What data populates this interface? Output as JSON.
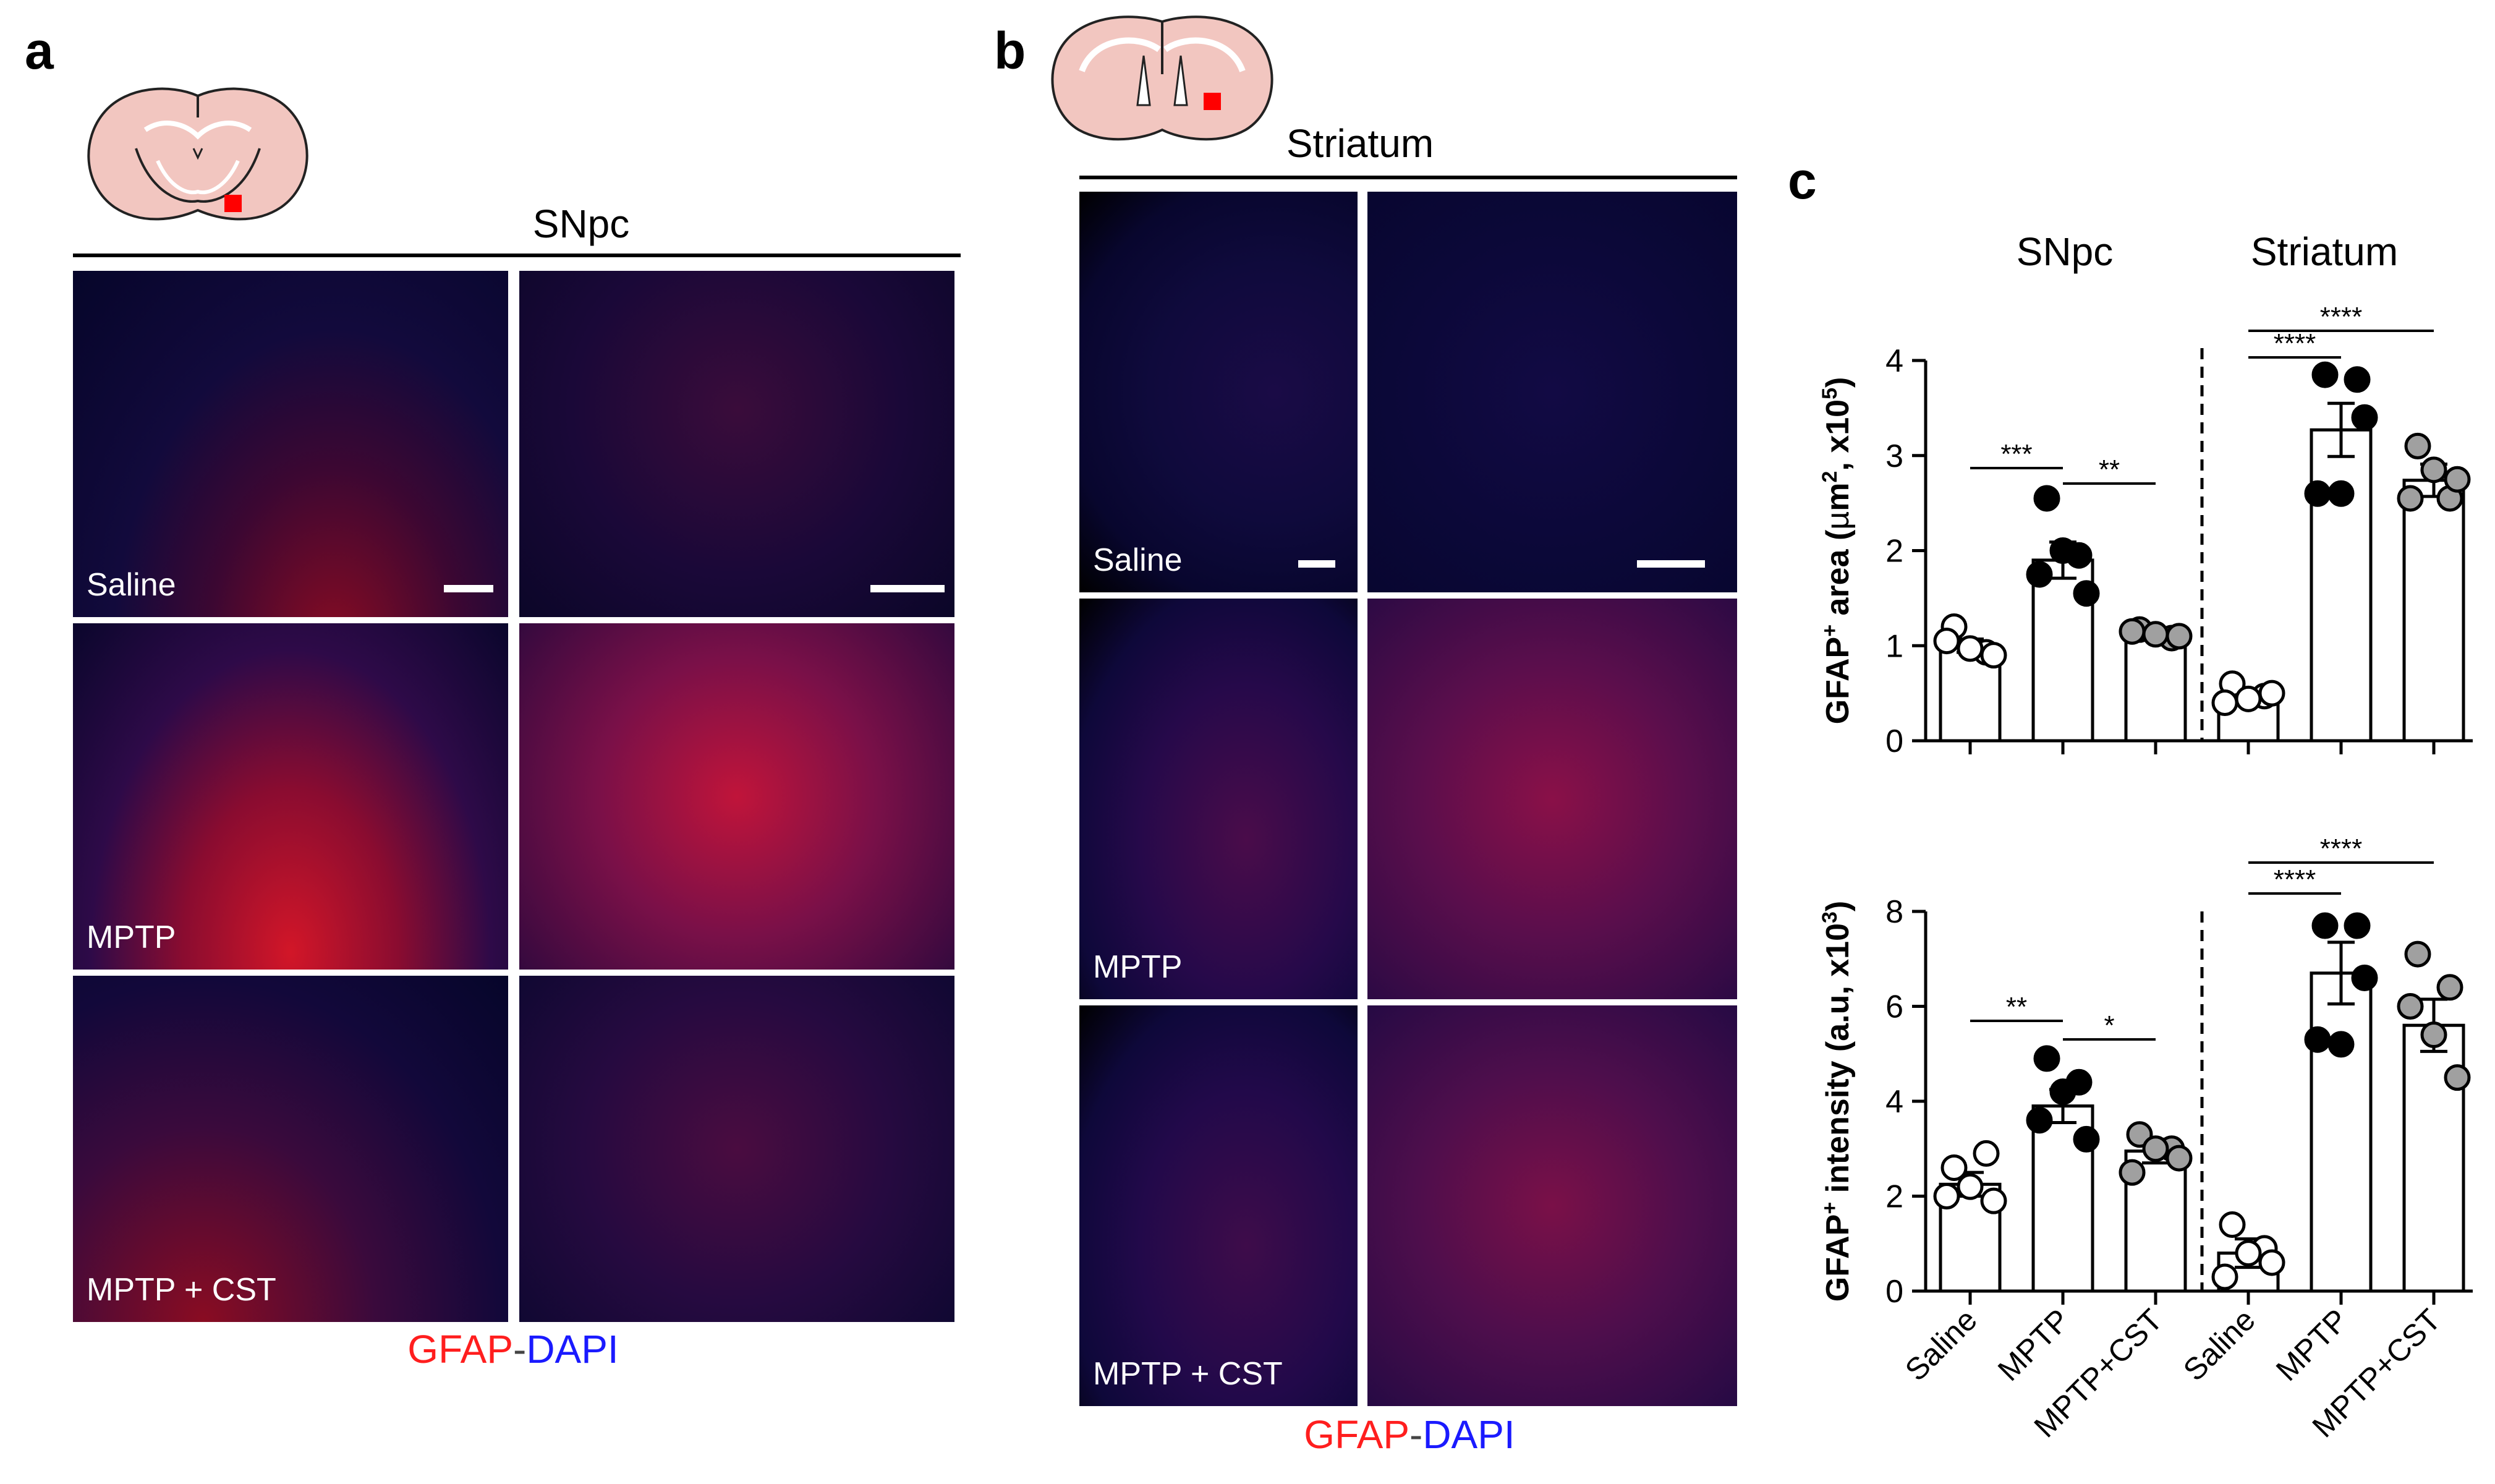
{
  "panel_a": {
    "letter": "a",
    "region": "SNpc",
    "images": [
      {
        "label": "Saline"
      },
      {
        "label": ""
      },
      {
        "label": "MPTP"
      },
      {
        "label": ""
      },
      {
        "label": "MPTP + CST"
      },
      {
        "label": ""
      }
    ],
    "stain": {
      "red": "GFAP",
      "sep": "-",
      "blue": "DAPI"
    }
  },
  "panel_b": {
    "letter": "b",
    "region": "Striatum",
    "images": [
      {
        "label": "Saline"
      },
      {
        "label": ""
      },
      {
        "label": "MPTP"
      },
      {
        "label": ""
      },
      {
        "label": "MPTP + CST"
      },
      {
        "label": ""
      }
    ],
    "stain": {
      "red": "GFAP",
      "sep": "-",
      "blue": "DAPI"
    }
  },
  "panel_c": {
    "letter": "c",
    "group_titles": [
      "SNpc",
      "Striatum"
    ],
    "categories": [
      "Saline",
      "MPTP",
      "MPTP+CST",
      "Saline",
      "MPTP",
      "MPTP+CST"
    ]
  },
  "colors": {
    "red": "#ff1e1e",
    "blue": "#1a1aff",
    "brain_fill": "#f2c6c0",
    "marker": "#ff0000",
    "saline_point": "#ffffff",
    "mptp_point": "#000000",
    "cst_point": "#a0a0a0"
  },
  "chart_data": [
    {
      "type": "bar",
      "ylabel_html": "GFAP<sup>+</sup> area (µm<sup>2</sup>, x10<sup>5</sup>)",
      "ylabel_parts": [
        "GFAP",
        "+",
        " area (",
        "µ",
        "m",
        "2",
        ", x10",
        "5",
        ")"
      ],
      "ylim": [
        0,
        4
      ],
      "yticks": [
        "0",
        "1",
        "2",
        "3",
        "4"
      ],
      "categories": [
        "Saline",
        "MPTP",
        "MPTP+CST",
        "Saline",
        "MPTP",
        "MPTP+CST"
      ],
      "means": [
        1.0,
        1.9,
        1.13,
        0.48,
        3.27,
        2.74
      ],
      "sem": [
        0.07,
        0.19,
        0.03,
        0.05,
        0.28,
        0.17
      ],
      "points": [
        [
          1.2,
          0.93,
          1.05,
          0.9,
          0.97
        ],
        [
          2.55,
          1.95,
          1.75,
          1.55,
          2.0
        ],
        [
          1.17,
          1.08,
          1.15,
          1.1,
          1.12
        ],
        [
          0.6,
          0.47,
          0.4,
          0.5,
          0.44
        ],
        [
          3.85,
          3.8,
          2.6,
          3.4,
          2.6
        ],
        [
          3.1,
          2.55,
          2.55,
          2.75,
          2.85
        ]
      ],
      "significance": [
        {
          "from": 0,
          "to": 1,
          "label": "***"
        },
        {
          "from": 1,
          "to": 2,
          "label": "**"
        },
        {
          "from": 3,
          "to": 4,
          "label": "****"
        },
        {
          "from": 3,
          "to": 5,
          "label": "****"
        }
      ]
    },
    {
      "type": "bar",
      "ylabel_parts": [
        "GFAP",
        "+",
        " intensity (a.u, x10",
        "3",
        ")"
      ],
      "ylim": [
        0,
        8
      ],
      "yticks": [
        "0",
        "2",
        "4",
        "6",
        "8"
      ],
      "categories": [
        "Saline",
        "MPTP",
        "MPTP+CST",
        "Saline",
        "MPTP",
        "MPTP+CST"
      ],
      "means": [
        2.25,
        3.9,
        2.95,
        0.8,
        6.7,
        5.6
      ],
      "sem": [
        0.25,
        0.35,
        0.25,
        0.3,
        0.65,
        0.55
      ],
      "points": [
        [
          2.6,
          2.9,
          2.0,
          1.9,
          2.2
        ],
        [
          4.9,
          4.4,
          3.6,
          3.2,
          4.2
        ],
        [
          3.3,
          3.0,
          2.5,
          2.8,
          3.0
        ],
        [
          1.4,
          0.9,
          0.3,
          0.6,
          0.8
        ],
        [
          7.7,
          7.7,
          5.3,
          6.6,
          5.2
        ],
        [
          7.1,
          6.4,
          6.0,
          4.5,
          5.4
        ]
      ],
      "significance": [
        {
          "from": 0,
          "to": 1,
          "label": "**"
        },
        {
          "from": 1,
          "to": 2,
          "label": "*"
        },
        {
          "from": 3,
          "to": 4,
          "label": "****"
        },
        {
          "from": 3,
          "to": 5,
          "label": "****"
        }
      ]
    }
  ]
}
